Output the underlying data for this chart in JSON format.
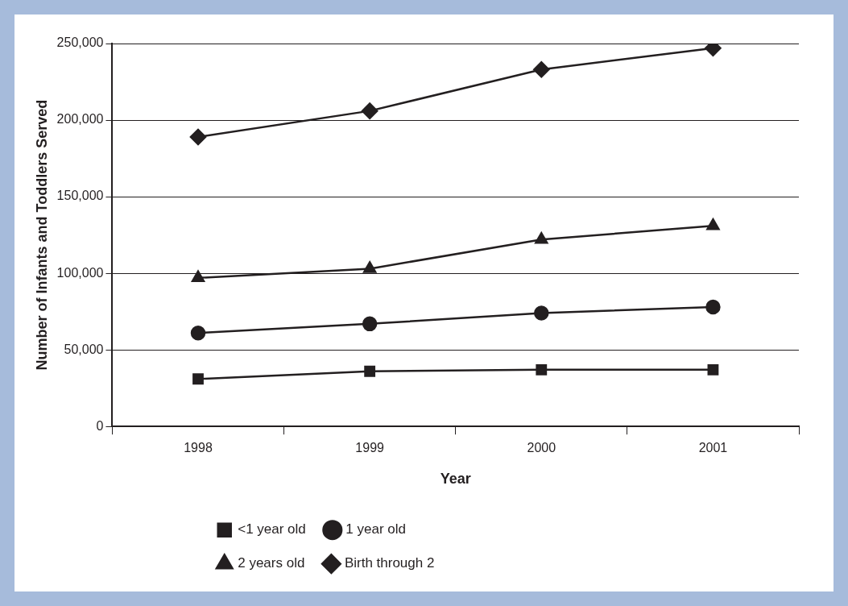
{
  "chart_data": {
    "type": "line",
    "xlabel": "Year",
    "ylabel": "Number of Infants and Toddlers Served",
    "categories": [
      "1998",
      "1999",
      "2000",
      "2001"
    ],
    "series": [
      {
        "name": "<1 year old",
        "color": "#231f20",
        "marker": "square",
        "values": [
          31000,
          36000,
          37000,
          37000
        ]
      },
      {
        "name": "1 year old",
        "color": "#231f20",
        "marker": "circle",
        "values": [
          61000,
          67000,
          74000,
          78000
        ]
      },
      {
        "name": "2 years old",
        "color": "#231f20",
        "marker": "triangle",
        "values": [
          97000,
          103000,
          122000,
          131000
        ]
      },
      {
        "name": "Birth through 2",
        "color": "#231f20",
        "marker": "diamond",
        "values": [
          189000,
          206000,
          233000,
          247000
        ]
      }
    ],
    "ylim": [
      0,
      250000
    ],
    "yticks": [
      0,
      {
        "value": 50000,
        "label": "50,000"
      },
      {
        "value": 100000,
        "label": "100,000"
      },
      {
        "value": 150000,
        "label": "150,000"
      },
      {
        "value": 200000,
        "label": "200,000"
      },
      {
        "value": 250000,
        "label": "250,000"
      }
    ],
    "grid": "y",
    "legend": "bottom"
  }
}
